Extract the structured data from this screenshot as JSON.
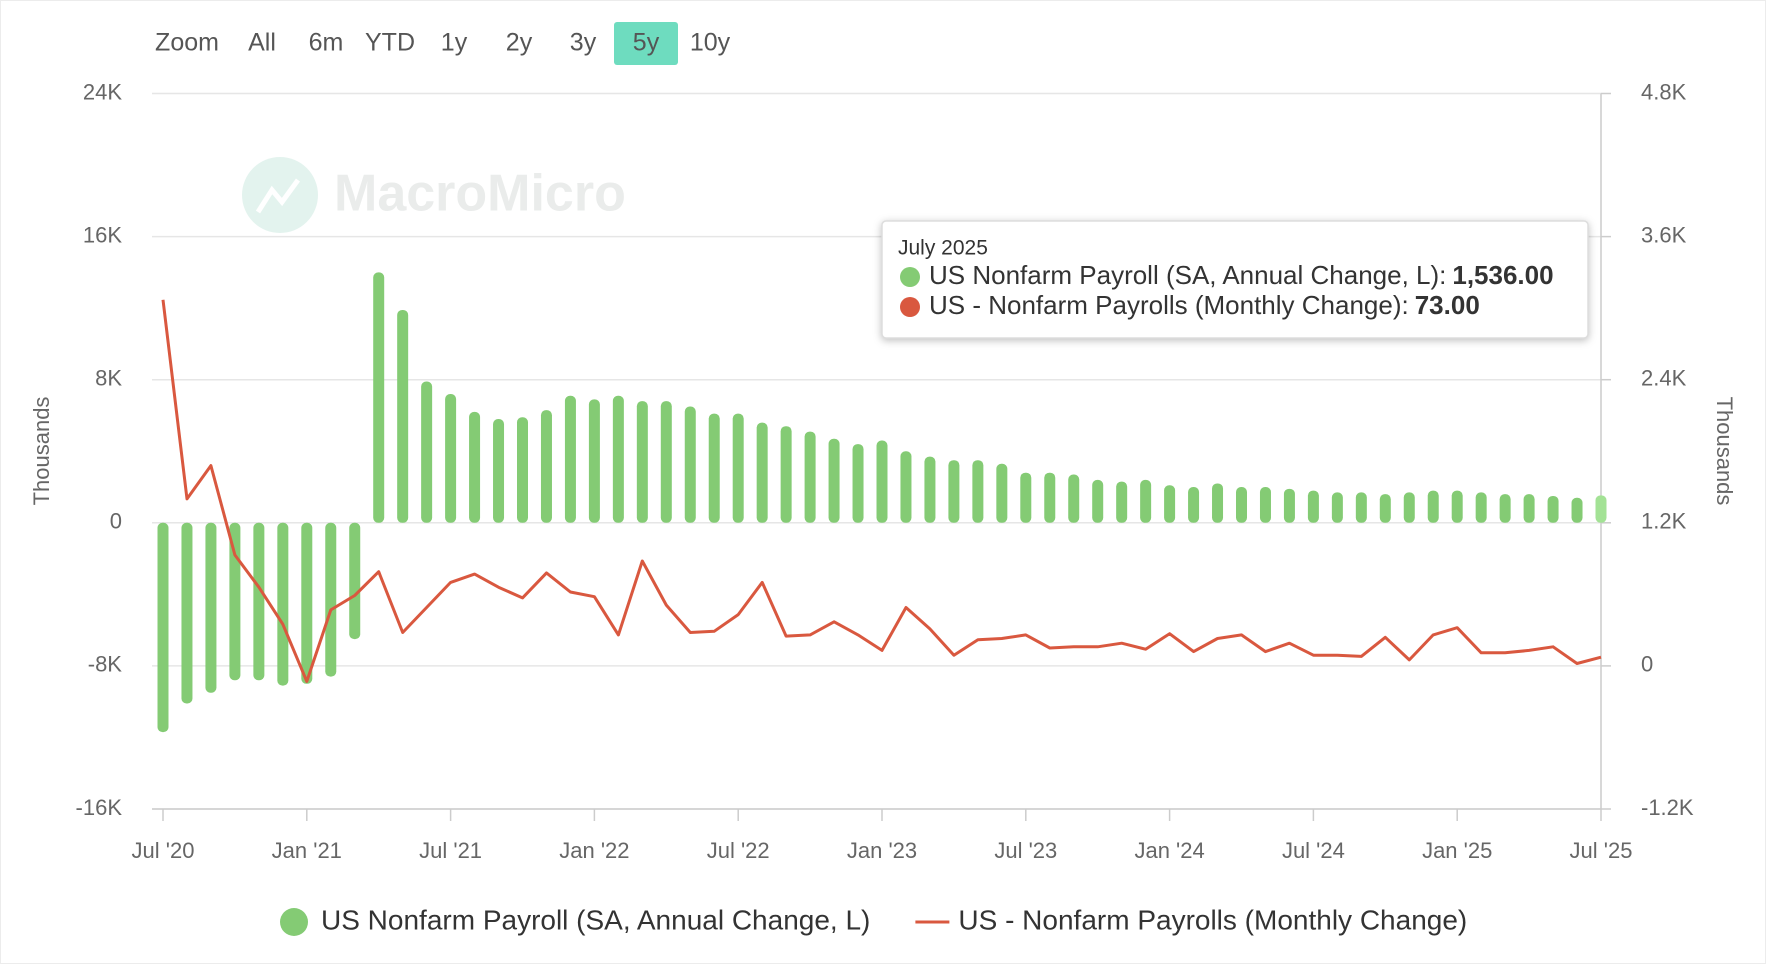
{
  "chart_data": {
    "type": "bar",
    "range_selector": {
      "label": "Zoom",
      "buttons": [
        "All",
        "6m",
        "YTD",
        "1y",
        "2y",
        "3y",
        "5y",
        "10y"
      ],
      "selected": "5y"
    },
    "watermark": "MacroMicro",
    "ylabel": "Thousands",
    "y2label": "Thousands",
    "categories": [
      "Jul '20",
      null,
      null,
      null,
      null,
      null,
      "Jan '21",
      null,
      null,
      null,
      null,
      null,
      "Jul '21",
      null,
      null,
      null,
      null,
      null,
      "Jan '22",
      null,
      null,
      null,
      null,
      null,
      "Jul '22",
      null,
      null,
      null,
      null,
      null,
      "Jan '23",
      null,
      null,
      null,
      null,
      null,
      "Jul '23",
      null,
      null,
      null,
      null,
      null,
      "Jan '24",
      null,
      null,
      null,
      null,
      null,
      "Jul '24",
      null,
      null,
      null,
      null,
      null,
      "Jan '25",
      null,
      null,
      null,
      null,
      null,
      "Jul '25"
    ],
    "ylim": [
      -16000,
      24000
    ],
    "yticks": [
      {
        "value": -16000,
        "label": "-16K"
      },
      {
        "value": -8000,
        "label": "-8K"
      },
      0,
      {
        "value": 8000,
        "label": "8K"
      },
      {
        "value": 16000,
        "label": "16K"
      },
      {
        "value": 24000,
        "label": "24K"
      }
    ],
    "y2lim": [
      -1200,
      4800
    ],
    "y2ticks": [
      {
        "value": -1200,
        "label": "-1.2K"
      },
      0,
      {
        "value": 1200,
        "label": "1.2K"
      },
      {
        "value": 2400,
        "label": "2.4K"
      },
      {
        "value": 3600,
        "label": "3.6K"
      },
      {
        "value": 4800,
        "label": "4.8K"
      }
    ],
    "grid": true,
    "legend": "bottom",
    "series": [
      {
        "name": "US Nonfarm Payroll (SA, Annual Change, L)",
        "type": "bar",
        "axis": "y",
        "color": "#84cb74",
        "highlight_color": "#a3e295",
        "values": [
          -11700,
          -10100,
          -9500,
          -8800,
          -8800,
          -9100,
          -9000,
          -8600,
          -6500,
          14000,
          11900,
          7900,
          7200,
          6200,
          5800,
          5900,
          6300,
          7100,
          6900,
          7100,
          6800,
          6800,
          6500,
          6100,
          6100,
          5600,
          5400,
          5100,
          4700,
          4400,
          4600,
          4000,
          3700,
          3500,
          3500,
          3300,
          2800,
          2800,
          2700,
          2400,
          2300,
          2400,
          2100,
          2000,
          2200,
          2000,
          2000,
          1900,
          1800,
          1700,
          1700,
          1600,
          1700,
          1800,
          1800,
          1700,
          1600,
          1600,
          1500,
          1400,
          1536
        ]
      },
      {
        "name": "US - Nonfarm Payrolls (Monthly Change)",
        "type": "line",
        "axis": "y2",
        "color": "#d9583f",
        "values": [
          3070,
          1400,
          1680,
          930,
          660,
          350,
          -130,
          470,
          590,
          790,
          280,
          490,
          700,
          770,
          660,
          570,
          780,
          620,
          580,
          260,
          880,
          510,
          280,
          290,
          430,
          700,
          250,
          260,
          370,
          260,
          130,
          490,
          310,
          90,
          220,
          230,
          260,
          150,
          160,
          160,
          190,
          140,
          270,
          120,
          230,
          260,
          120,
          190,
          90,
          90,
          80,
          240,
          50,
          260,
          320,
          110,
          110,
          130,
          160,
          20,
          73
        ]
      }
    ],
    "tooltip": {
      "title": "July 2025",
      "items": [
        {
          "label": "US Nonfarm Payroll (SA, Annual Change, L):",
          "value_label": "1,536.00"
        },
        {
          "label": "US - Nonfarm Payrolls (Monthly Change):",
          "value_label": "73.00"
        }
      ]
    }
  }
}
